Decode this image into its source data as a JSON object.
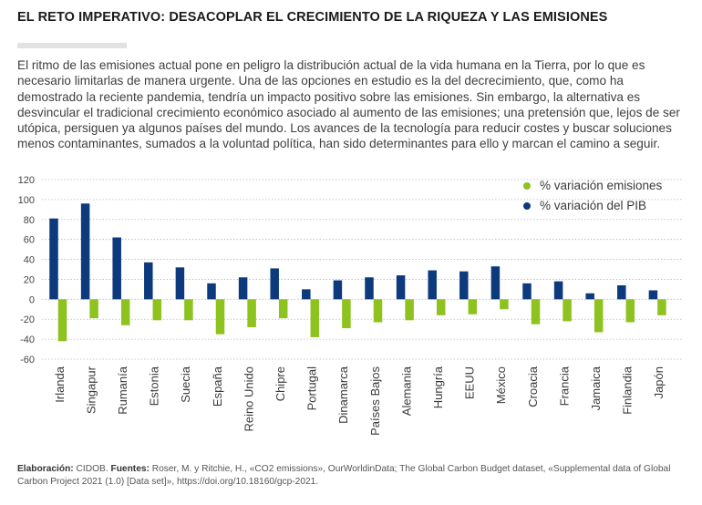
{
  "title": "EL RETO IMPERATIVO: DESACOPLAR EL CRECIMIENTO DE LA RIQUEZA Y LAS EMISIONES",
  "intro": "El ritmo de las emisiones actual pone en peligro la distribución actual de la vida humana en la Tierra, por lo que es necesario limitarlas de manera urgente. Una de las opciones en estudio es la del decrecimiento, que, como ha demostrado la reciente pandemia, tendría un impacto positivo sobre las emisiones. Sin embargo, la alternativa es desvincular el tradicional crecimiento económico asociado al aumento de las emisiones; una pretensión que, lejos de ser utópica, persiguen ya algunos países del mundo. Los avances de la tecnología para reducir costes y buscar soluciones menos contaminantes, sumados a la voluntad política, han sido determinantes para ello y marcan el camino a seguir.",
  "chart_data": {
    "type": "bar",
    "categories": [
      "Irlanda",
      "Singapur",
      "Rumanía",
      "Estonia",
      "Suecia",
      "España",
      "Reino Unido",
      "Chipre",
      "Portugal",
      "Dinamarca",
      "Países Bajos",
      "Alemania",
      "Hungría",
      "EEUU",
      "México",
      "Croacia",
      "Francia",
      "Jamaica",
      "Finlandia",
      "Japón"
    ],
    "series": [
      {
        "name": "% variación emisiones",
        "color": "#8dc21f",
        "values": [
          -42,
          -19,
          -26,
          -21,
          -21,
          -35,
          -28,
          -19,
          -38,
          -29,
          -23,
          -21,
          -16,
          -15,
          -10,
          -25,
          -22,
          -33,
          -23,
          -16
        ]
      },
      {
        "name": "% variación del PIB",
        "color": "#0d3a7d",
        "values": [
          81,
          96,
          62,
          37,
          32,
          16,
          22,
          31,
          10,
          19,
          22,
          24,
          29,
          28,
          33,
          16,
          18,
          6,
          14,
          9
        ]
      }
    ],
    "yticks": [
      120,
      100,
      80,
      60,
      40,
      20,
      0,
      -20,
      -40,
      -60
    ],
    "ylim": [
      -60,
      120
    ],
    "grid": true,
    "legend_position": "top-right"
  },
  "footer": {
    "label1": "Elaboración:",
    "text1": " CIDOB. ",
    "label2": "Fuentes:",
    "text2": " Roser, M. y Ritchie, H., «CO2 emissions», OurWorldinData; The Global Carbon Budget dataset, «Supplemental data of Global Carbon Project 2021 (1.0) [Data set]», https://doi.org/10.18160/gcp-2021."
  }
}
